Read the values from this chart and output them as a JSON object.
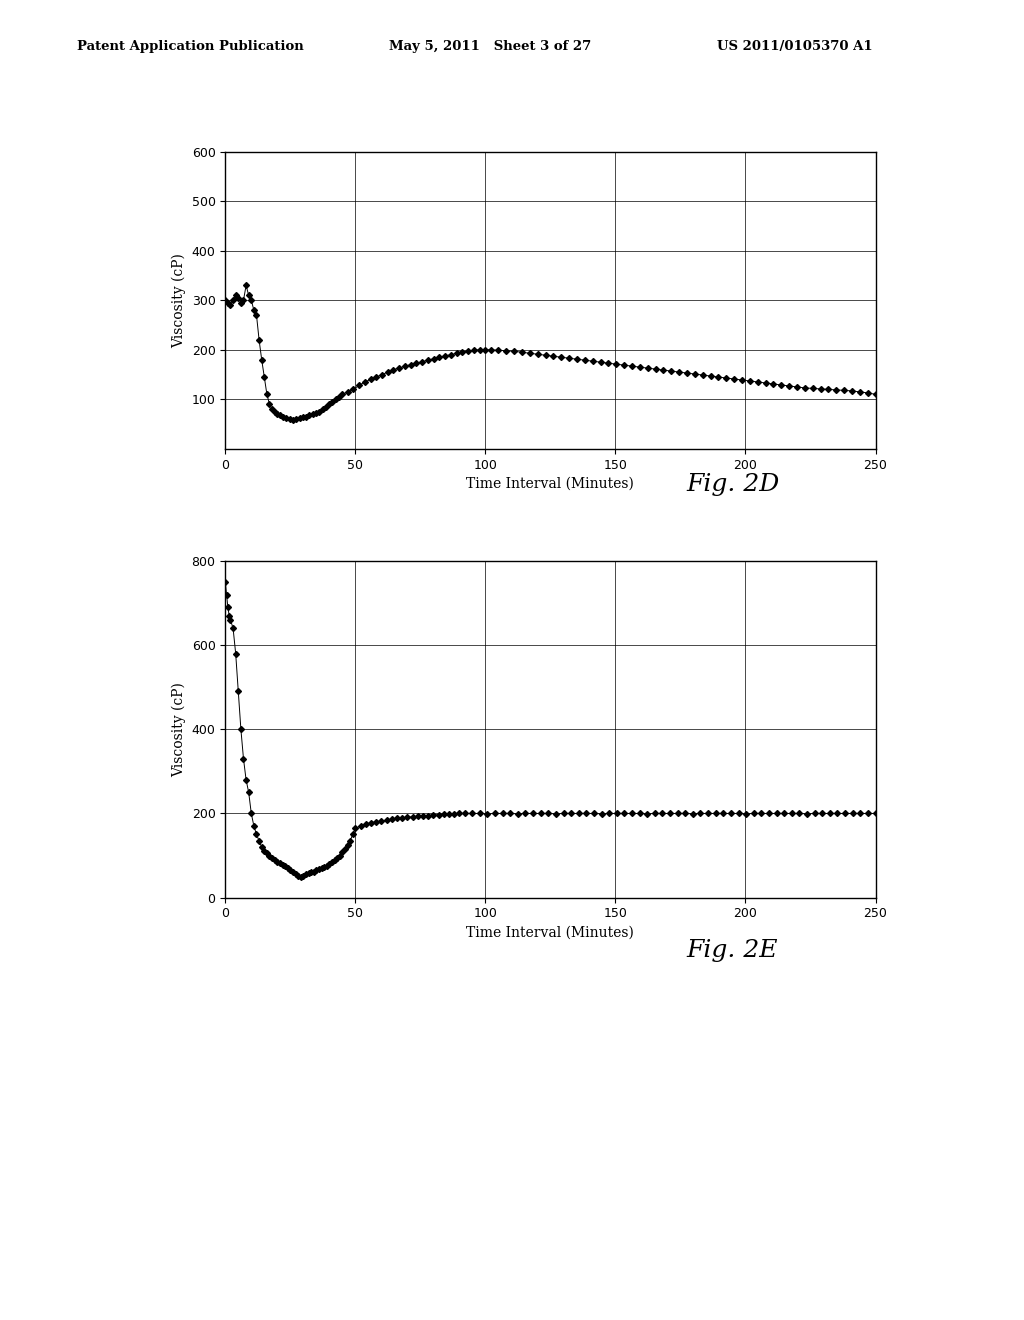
{
  "header_left": "Patent Application Publication",
  "header_center": "May 5, 2011   Sheet 3 of 27",
  "header_right": "US 2011/0105370 A1",
  "fig2d_label": "Fig. 2D",
  "fig2e_label": "Fig. 2E",
  "xlabel": "Time Interval (Minutes)",
  "ylabel": "Viscosity (cP)",
  "fig2d_xlim": [
    0,
    250
  ],
  "fig2d_ylim": [
    0,
    600
  ],
  "fig2d_xticks": [
    0,
    50,
    100,
    150,
    200,
    250
  ],
  "fig2d_yticks": [
    100,
    200,
    300,
    400,
    500,
    600
  ],
  "fig2e_xlim": [
    0,
    250
  ],
  "fig2e_ylim": [
    0,
    800
  ],
  "fig2e_xticks": [
    0,
    50,
    100,
    150,
    200,
    250
  ],
  "fig2e_yticks": [
    0,
    200,
    400,
    600,
    800
  ],
  "background_color": "#ffffff",
  "line_color": "#000000",
  "marker": "D",
  "marker_size": 3
}
